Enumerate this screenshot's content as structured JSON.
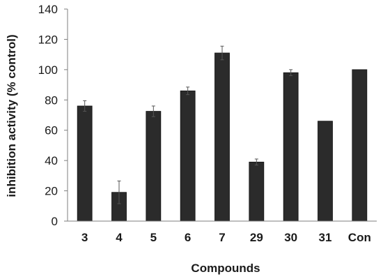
{
  "chart_data": {
    "type": "bar",
    "title": "",
    "xlabel": "Compounds",
    "ylabel": "inhibition activity (% control)",
    "categories": [
      "3",
      "4",
      "5",
      "6",
      "7",
      "29",
      "30",
      "31",
      "Con"
    ],
    "values": [
      76,
      19,
      72.5,
      86,
      111,
      39,
      98,
      66,
      100
    ],
    "errors": [
      3.5,
      7.5,
      3.5,
      2.5,
      4.5,
      2,
      2,
      0,
      0
    ],
    "ylim": [
      0,
      140
    ],
    "yticks": [
      0,
      20,
      40,
      60,
      80,
      100,
      120,
      140
    ],
    "grid": false,
    "legend": "none",
    "bar_color": "#2b2b2b",
    "axis_color": "#7f7f7f"
  }
}
